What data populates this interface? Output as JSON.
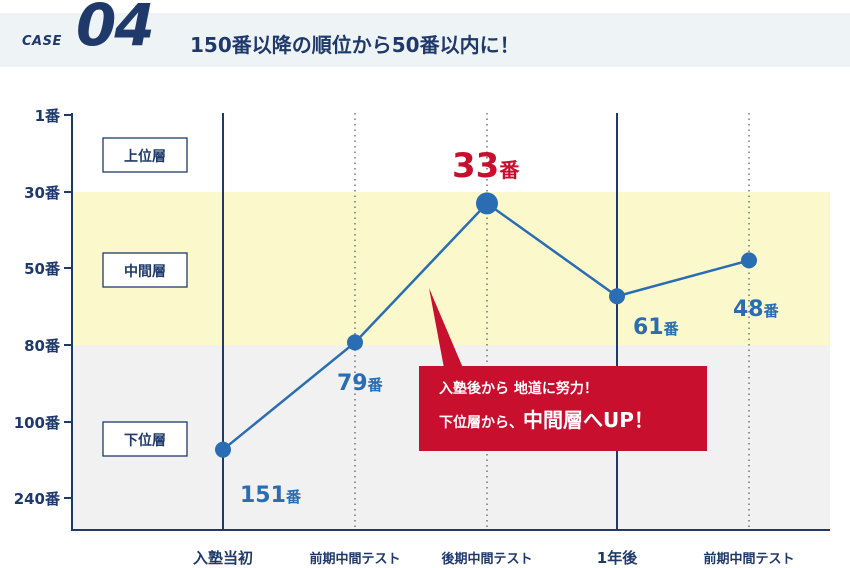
{
  "header": {
    "case_label": "CASE",
    "case_number": "04",
    "headline": "150番以降の順位から50番以内に！"
  },
  "colors": {
    "navy": "#1f3a6a",
    "line_blue": "#2a6db3",
    "upper_band": "#ffffff",
    "middle_band": "#fbf9cc",
    "lower_band": "#f1f1f1",
    "highlight_red": "#c8102e"
  },
  "chart_data": {
    "type": "line",
    "y_axis": {
      "ticks": [
        "1番",
        "30番",
        "50番",
        "80番",
        "100番",
        "240番"
      ],
      "inverted": true
    },
    "categories": [
      "入塾当初",
      "前期中間テスト",
      "後期中間テスト",
      "1年後",
      "前期中間テスト"
    ],
    "series": [
      {
        "values": [
          151,
          79,
          33,
          61,
          48
        ]
      }
    ],
    "data_labels": [
      {
        "num": "151",
        "unit": "番"
      },
      {
        "num": "79",
        "unit": "番"
      },
      {
        "num": "33",
        "unit": "番"
      },
      {
        "num": "61",
        "unit": "番"
      },
      {
        "num": "48",
        "unit": "番"
      }
    ],
    "bands": [
      {
        "label": "上位層",
        "from": "1番",
        "to": "30番"
      },
      {
        "label": "中間層",
        "from": "30番",
        "to": "80番"
      },
      {
        "label": "下位層",
        "from": "80番",
        "to": "240番"
      }
    ],
    "annotation": {
      "line1": "入塾後から 地道に努力！",
      "line2_prefix": "下位層から、",
      "line2_emphasis": "中間層へUP！"
    }
  }
}
